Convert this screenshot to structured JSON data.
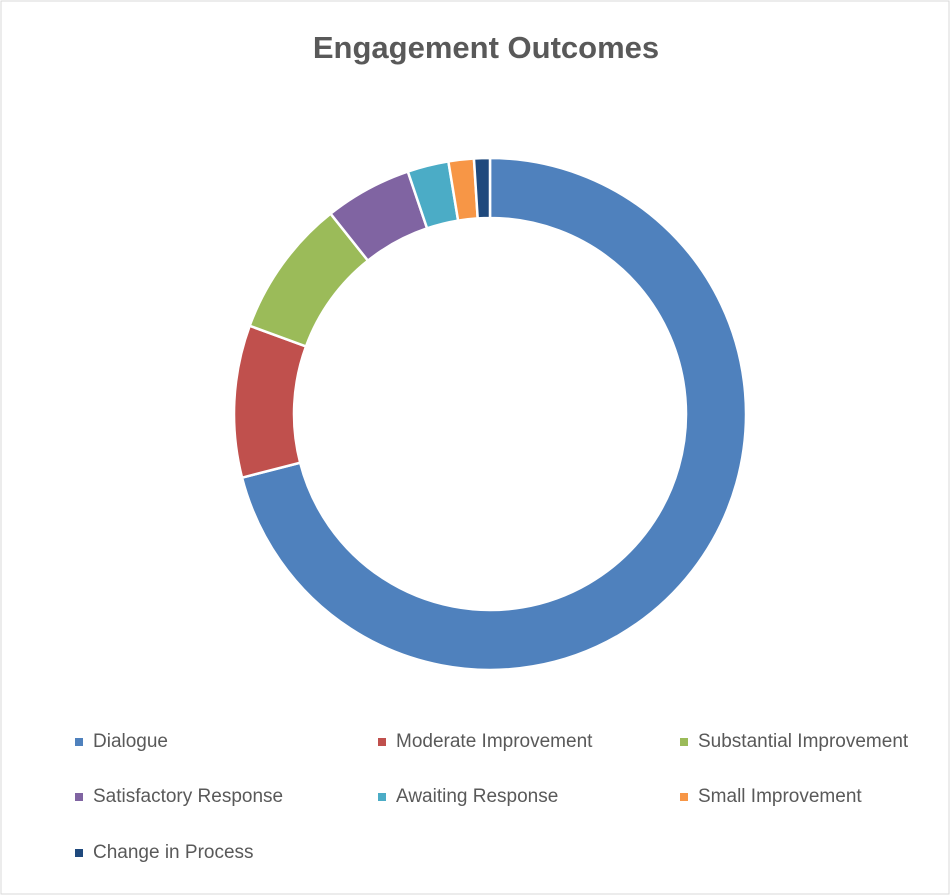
{
  "chart_data": {
    "type": "donut",
    "title": "Engagement Outcomes",
    "categories": [
      "Dialogue",
      "Moderate Improvement",
      "Substantial Improvement",
      "Satisfactory Response",
      "Awaiting Response",
      "Small Improvement",
      "Change in Process"
    ],
    "values": [
      71,
      9.6,
      8.7,
      5.5,
      2.6,
      1.6,
      1.0
    ],
    "colors": [
      "#4f81bd",
      "#c0504d",
      "#9bbb59",
      "#8064a2",
      "#4bacc6",
      "#f79646",
      "#1f497d"
    ],
    "legend": "bottom"
  }
}
